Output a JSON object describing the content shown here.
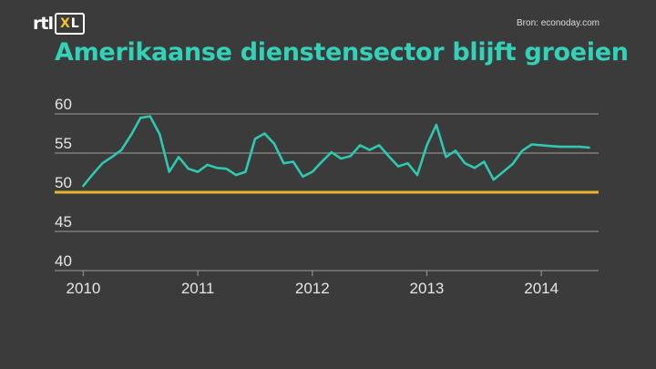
{
  "header": {
    "logo_rtl": "rtl",
    "logo_x": "X",
    "logo_l": "L",
    "source": "Bron: econoday.com",
    "title": "Amerikaanse dienstensector blijft groeien"
  },
  "colors": {
    "background": "#3b3b3b",
    "title": "#33d1b8",
    "line": "#2ec9b0",
    "reference": "#e8b62a",
    "gridline": "#8a8a8a"
  },
  "chart_data": {
    "type": "line",
    "title": "Amerikaanse dienstensector blijft groeien",
    "xlabel": "",
    "ylabel": "",
    "ylim": [
      40,
      60
    ],
    "xlim": [
      2009.75,
      2014.5
    ],
    "yticks": [
      40,
      45,
      50,
      55,
      60
    ],
    "xticks": [
      2010,
      2011,
      2012,
      2013,
      2014
    ],
    "grid": true,
    "reference_line": 50,
    "series": [
      {
        "x": [
          2010.0,
          2010.083,
          2010.167,
          2010.25,
          2010.333,
          2010.417,
          2010.5,
          2010.583,
          2010.667,
          2010.75,
          2010.833,
          2010.917,
          2011.0,
          2011.083,
          2011.167,
          2011.25,
          2011.333,
          2011.417,
          2011.5,
          2011.583,
          2011.667,
          2011.75,
          2011.833,
          2011.917,
          2012.0,
          2012.083,
          2012.167,
          2012.25,
          2012.333,
          2012.417,
          2012.5,
          2012.583,
          2012.667,
          2012.75,
          2012.833,
          2012.917,
          2013.0,
          2013.083,
          2013.167,
          2013.25,
          2013.333,
          2013.417,
          2013.5,
          2013.583,
          2013.667,
          2013.75,
          2013.833,
          2013.917,
          2014.0,
          2014.083,
          2014.167,
          2014.25,
          2014.333,
          2014.417
        ],
        "values": [
          50.8,
          52.3,
          53.7,
          54.5,
          55.4,
          57.3,
          59.5,
          59.7,
          57.4,
          52.6,
          54.5,
          53.0,
          52.6,
          53.5,
          53.1,
          53.0,
          52.2,
          52.6,
          56.8,
          57.5,
          56.2,
          53.7,
          53.9,
          52.0,
          52.6,
          53.9,
          55.1,
          54.3,
          54.6,
          56.0,
          55.4,
          56.0,
          54.6,
          53.3,
          53.7,
          52.2,
          56.0,
          58.6,
          54.5,
          55.3,
          53.7,
          53.1,
          53.9,
          51.6,
          52.6,
          53.6,
          55.3,
          56.1,
          56.0,
          55.9,
          55.8,
          55.8,
          55.8,
          55.7
        ]
      }
    ]
  }
}
